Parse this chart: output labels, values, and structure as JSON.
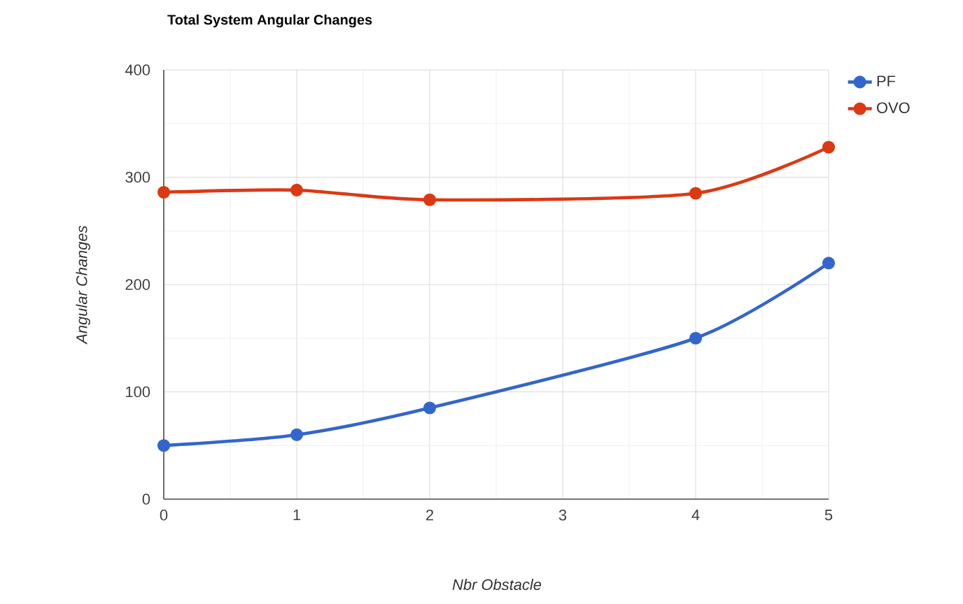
{
  "chart_data": {
    "type": "line",
    "title": "Total System Angular Changes",
    "xlabel": "Nbr Obstacle",
    "ylabel": "Angular Changes",
    "x": [
      0,
      1,
      2,
      4,
      5
    ],
    "series": [
      {
        "name": "PF",
        "color": "#3366cc",
        "values": [
          50,
          60,
          85,
          150,
          220
        ]
      },
      {
        "name": "OVO",
        "color": "#dc3912",
        "values": [
          286,
          288,
          279,
          285,
          328
        ]
      }
    ],
    "xlim": [
      0,
      5
    ],
    "xticks": [
      0,
      1,
      2,
      3,
      4,
      5
    ],
    "ylim": [
      0,
      400
    ],
    "yticks": [
      0,
      100,
      200,
      300,
      400
    ],
    "grid": true,
    "legend": "right",
    "marker": "circle",
    "line_style": "solid"
  }
}
